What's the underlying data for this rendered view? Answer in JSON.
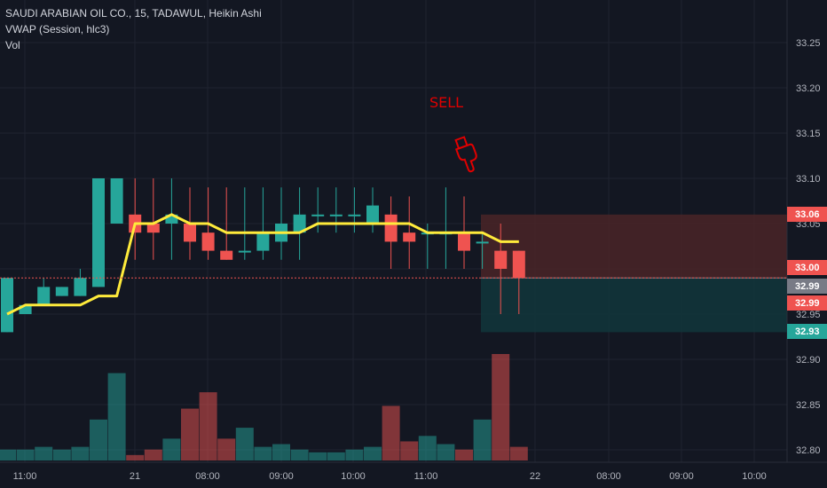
{
  "header": {
    "title": "SAUDI ARABIAN OIL CO., 15, TADAWUL, Heikin Ashi",
    "indicator": "VWAP (Session, hlc3)",
    "volume_label": "Vol"
  },
  "annotation": {
    "text": "SELL",
    "icon": "pointing-hand-down-icon"
  },
  "colors": {
    "up": "#26a69a",
    "down": "#ef5350",
    "vwap": "#ffeb3b",
    "background": "#131722",
    "stop_zone": "#4a2427",
    "target_zone": "#12343a"
  },
  "chart_data": {
    "type": "candlestick",
    "ylim": [
      32.78,
      33.28
    ],
    "y_ticks": [
      "33.25",
      "33.20",
      "33.15",
      "33.10",
      "33.05",
      "33.00",
      "32.95",
      "32.90",
      "32.85",
      "32.80"
    ],
    "x_ticks": [
      "11:00",
      "21",
      "08:00",
      "09:00",
      "10:00",
      "11:00",
      "22",
      "08:00",
      "09:00",
      "10:00"
    ],
    "candles": [
      {
        "o": 32.93,
        "h": 32.99,
        "l": 32.93,
        "c": 32.99
      },
      {
        "o": 32.95,
        "h": 32.96,
        "l": 32.95,
        "c": 32.96
      },
      {
        "o": 32.96,
        "h": 32.99,
        "l": 32.96,
        "c": 32.98
      },
      {
        "o": 32.97,
        "h": 32.98,
        "l": 32.97,
        "c": 32.98
      },
      {
        "o": 32.97,
        "h": 33.0,
        "l": 32.97,
        "c": 32.99
      },
      {
        "o": 32.98,
        "h": 33.1,
        "l": 32.98,
        "c": 33.1
      },
      {
        "o": 33.05,
        "h": 33.1,
        "l": 33.05,
        "c": 33.1
      },
      {
        "o": 33.06,
        "h": 33.1,
        "l": 33.01,
        "c": 33.04
      },
      {
        "o": 33.05,
        "h": 33.1,
        "l": 33.01,
        "c": 33.04
      },
      {
        "o": 33.05,
        "h": 33.1,
        "l": 33.01,
        "c": 33.06
      },
      {
        "o": 33.05,
        "h": 33.09,
        "l": 33.01,
        "c": 33.03
      },
      {
        "o": 33.04,
        "h": 33.09,
        "l": 33.01,
        "c": 33.02
      },
      {
        "o": 33.02,
        "h": 33.09,
        "l": 33.01,
        "c": 33.01
      },
      {
        "o": 33.02,
        "h": 33.09,
        "l": 33.01,
        "c": 33.02
      },
      {
        "o": 33.02,
        "h": 33.09,
        "l": 33.01,
        "c": 33.04
      },
      {
        "o": 33.03,
        "h": 33.09,
        "l": 33.01,
        "c": 33.05
      },
      {
        "o": 33.04,
        "h": 33.09,
        "l": 33.01,
        "c": 33.06
      },
      {
        "o": 33.06,
        "h": 33.09,
        "l": 33.04,
        "c": 33.06
      },
      {
        "o": 33.06,
        "h": 33.09,
        "l": 33.04,
        "c": 33.06
      },
      {
        "o": 33.06,
        "h": 33.09,
        "l": 33.04,
        "c": 33.06
      },
      {
        "o": 33.05,
        "h": 33.09,
        "l": 33.04,
        "c": 33.07
      },
      {
        "o": 33.06,
        "h": 33.08,
        "l": 33.0,
        "c": 33.03
      },
      {
        "o": 33.04,
        "h": 33.08,
        "l": 33.0,
        "c": 33.03
      },
      {
        "o": 33.04,
        "h": 33.05,
        "l": 33.0,
        "c": 33.04
      },
      {
        "o": 33.04,
        "h": 33.09,
        "l": 33.0,
        "c": 33.04
      },
      {
        "o": 33.04,
        "h": 33.08,
        "l": 33.0,
        "c": 33.02
      },
      {
        "o": 33.03,
        "h": 33.04,
        "l": 33.0,
        "c": 33.03
      },
      {
        "o": 33.02,
        "h": 33.05,
        "l": 32.95,
        "c": 33.0
      },
      {
        "o": 33.02,
        "h": 33.02,
        "l": 32.95,
        "c": 32.99
      }
    ],
    "vwap": [
      32.95,
      32.96,
      32.96,
      32.96,
      32.96,
      32.97,
      32.97,
      33.05,
      33.05,
      33.06,
      33.05,
      33.05,
      33.04,
      33.04,
      33.04,
      33.04,
      33.04,
      33.05,
      33.05,
      33.05,
      33.05,
      33.05,
      33.05,
      33.04,
      33.04,
      33.04,
      33.04,
      33.03,
      33.03
    ],
    "volume": [
      4,
      4,
      5,
      4,
      5,
      15,
      32,
      2,
      4,
      8,
      19,
      25,
      8,
      12,
      5,
      6,
      4,
      3,
      3,
      4,
      5,
      20,
      7,
      9,
      6,
      4,
      15,
      39,
      5
    ],
    "price_line": 32.99,
    "position": {
      "entry": 32.99,
      "stop": 33.06,
      "target": 32.93,
      "current": 32.99
    },
    "price_labels": [
      "33.06",
      "33.00",
      "32.99",
      "32.99",
      "32.93"
    ]
  }
}
